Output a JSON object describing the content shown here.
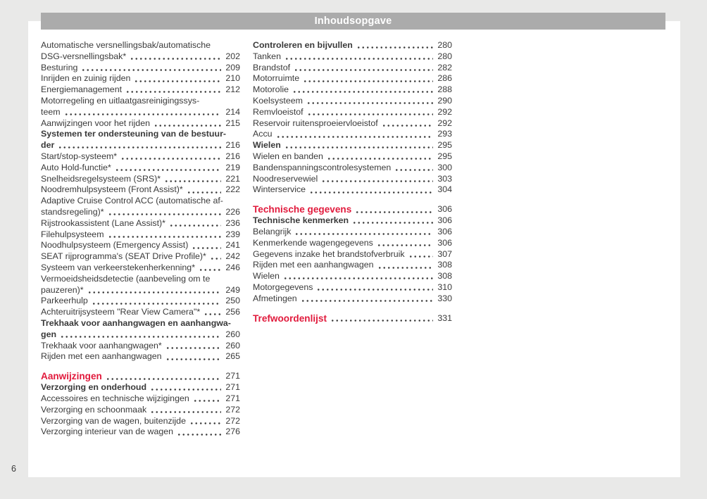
{
  "page": {
    "header_title": "Inhoudsopgave",
    "page_number": "6"
  },
  "colors": {
    "accent_red": "#e11a3c",
    "header_bar_gray": "#ababab",
    "body_text": "#3a3a3a",
    "page_background": "#ffffff",
    "outer_background": "#e9e9e8"
  },
  "toc": {
    "left_column": [
      {
        "label": "Automatische versnellingsbak/automatische",
        "label2": "DSG-versnellingsbak*",
        "page": "202",
        "style": "normal"
      },
      {
        "label": "Besturing",
        "page": "209",
        "style": "normal"
      },
      {
        "label": "Inrijden en zuinig rijden",
        "page": "210",
        "style": "normal"
      },
      {
        "label": "Energiemanagement",
        "page": "212",
        "style": "normal"
      },
      {
        "label": "Motorregeling en uitlaatgasreinigingssys-",
        "label2": "teem",
        "page": "214",
        "style": "normal"
      },
      {
        "label": "Aanwijzingen voor het rijden",
        "page": "215",
        "style": "normal"
      },
      {
        "label": "Systemen ter ondersteuning van de bestuur-",
        "label2": "der",
        "page": "216",
        "style": "bold"
      },
      {
        "label": "Start/stop-systeem*",
        "page": "216",
        "style": "normal"
      },
      {
        "label": "Auto Hold-functie*",
        "page": "219",
        "style": "normal"
      },
      {
        "label": "Snelheidsregelsysteem (SRS)*",
        "page": "221",
        "style": "normal"
      },
      {
        "label": "Noodremhulpsysteem (Front Assist)*",
        "page": "222",
        "style": "normal"
      },
      {
        "label": "Adaptive Cruise Control ACC (automatische af-",
        "label2": "standsregeling)*",
        "page": "226",
        "style": "normal"
      },
      {
        "label": "Rijstrookassistent (Lane Assist)*",
        "page": "236",
        "style": "normal"
      },
      {
        "label": "Filehulpsysteem",
        "page": "239",
        "style": "normal"
      },
      {
        "label": "Noodhulpsysteem (Emergency Assist)",
        "page": "241",
        "style": "normal"
      },
      {
        "label": "SEAT rijprogramma's (SEAT Drive Profile)*",
        "page": "242",
        "style": "normal"
      },
      {
        "label": "Systeem van verkeerstekenherkenning*",
        "page": "246",
        "style": "normal"
      },
      {
        "label": "Vermoeidsheidsdetectie (aanbeveling om te",
        "label2": "pauzeren)*",
        "page": "249",
        "style": "normal"
      },
      {
        "label": "Parkeerhulp",
        "page": "250",
        "style": "normal"
      },
      {
        "label": "Achteruitrijsysteem \"Rear View Camera\"*",
        "page": "256",
        "style": "normal"
      },
      {
        "label": "Trekhaak voor aanhangwagen en aanhangwa-",
        "label2": "gen",
        "page": "260",
        "style": "bold"
      },
      {
        "label": "Trekhaak voor aanhangwagen*",
        "page": "260",
        "style": "normal"
      },
      {
        "label": "Rijden met een aanhangwagen",
        "page": "265",
        "style": "normal"
      },
      {
        "label": "Aanwijzingen",
        "page": "271",
        "style": "red",
        "gap_before": true
      },
      {
        "label": "Verzorging en onderhoud",
        "page": "271",
        "style": "bold"
      },
      {
        "label": "Accessoires en technische wijzigingen",
        "page": "271",
        "style": "normal"
      },
      {
        "label": "Verzorging en schoonmaak",
        "page": "272",
        "style": "normal"
      },
      {
        "label": "Verzorging van de wagen, buitenzijde",
        "page": "272",
        "style": "normal"
      },
      {
        "label": "Verzorging interieur van de wagen",
        "page": "276",
        "style": "normal"
      }
    ],
    "right_column": [
      {
        "label": "Controleren en bijvullen",
        "page": "280",
        "style": "bold"
      },
      {
        "label": "Tanken",
        "page": "280",
        "style": "normal"
      },
      {
        "label": "Brandstof",
        "page": "282",
        "style": "normal"
      },
      {
        "label": "Motorruimte",
        "page": "286",
        "style": "normal"
      },
      {
        "label": "Motorolie",
        "page": "288",
        "style": "normal"
      },
      {
        "label": "Koelsysteem",
        "page": "290",
        "style": "normal"
      },
      {
        "label": "Remvloeistof",
        "page": "292",
        "style": "normal"
      },
      {
        "label": "Reservoir ruitensproeiervloeistof",
        "page": "292",
        "style": "normal"
      },
      {
        "label": "Accu",
        "page": "293",
        "style": "normal"
      },
      {
        "label": "Wielen",
        "page": "295",
        "style": "bold"
      },
      {
        "label": "Wielen en banden",
        "page": "295",
        "style": "normal"
      },
      {
        "label": "Bandenspanningscontrolesystemen",
        "page": "300",
        "style": "normal"
      },
      {
        "label": "Noodreservewiel",
        "page": "303",
        "style": "normal"
      },
      {
        "label": "Winterservice",
        "page": "304",
        "style": "normal"
      },
      {
        "label": "Technische gegevens",
        "page": "306",
        "style": "red",
        "gap_before": true
      },
      {
        "label": "Technische kenmerken",
        "page": "306",
        "style": "bold"
      },
      {
        "label": "Belangrijk",
        "page": "306",
        "style": "normal"
      },
      {
        "label": "Kenmerkende wagengegevens",
        "page": "306",
        "style": "normal"
      },
      {
        "label": "Gegevens inzake het brandstofverbruik",
        "page": "307",
        "style": "normal"
      },
      {
        "label": "Rijden met een aanhangwagen",
        "page": "308",
        "style": "normal"
      },
      {
        "label": "Wielen",
        "page": "308",
        "style": "normal"
      },
      {
        "label": "Motorgegevens",
        "page": "310",
        "style": "normal"
      },
      {
        "label": "Afmetingen",
        "page": "330",
        "style": "normal"
      },
      {
        "label": "Trefwoordenlijst",
        "page": "331",
        "style": "red",
        "gap_before": true
      }
    ]
  }
}
